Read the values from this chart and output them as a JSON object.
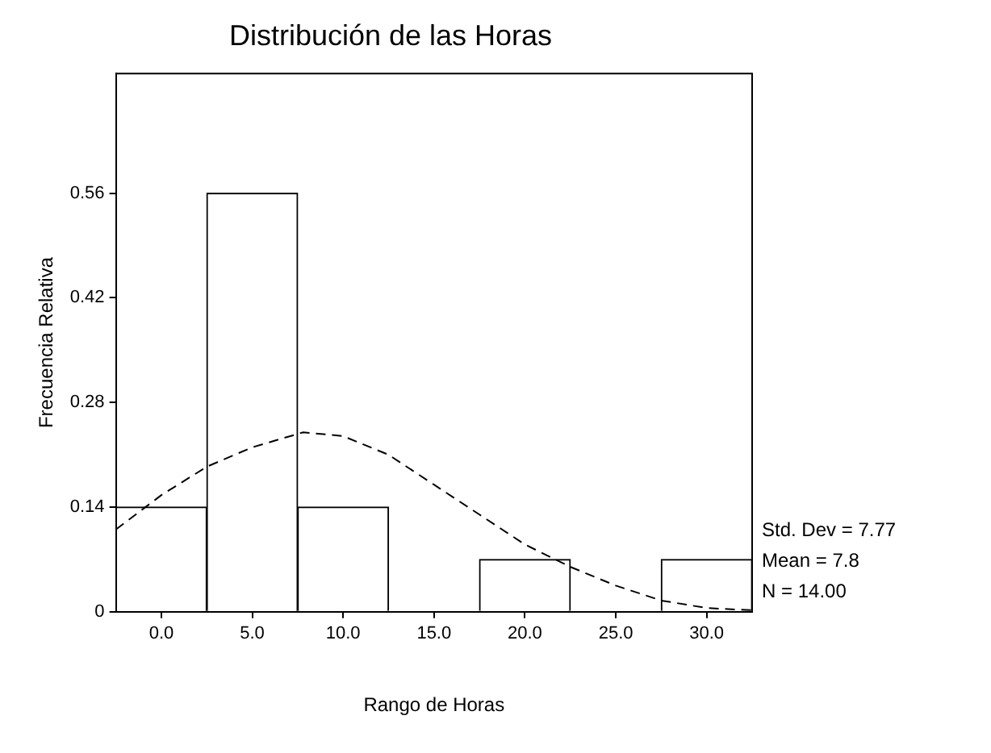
{
  "chart_data": {
    "type": "histogram",
    "title": "Distribución de las Horas",
    "xlabel": "Rango de Horas",
    "ylabel": "Frecuencia Relativa",
    "bins": [
      -2.5,
      2.5,
      7.5,
      12.5,
      17.5,
      22.5,
      27.5,
      32.5
    ],
    "values": [
      0.14,
      0.56,
      0.14,
      0,
      0.07,
      0,
      0.07
    ],
    "color": "#ffffff",
    "series": [
      {
        "type": "line",
        "color": "#000000",
        "line_style": "dashed",
        "marker": "none",
        "x": [
          -2.5,
          0,
          2.5,
          5,
          7.8,
          10,
          12.5,
          15,
          17.5,
          20,
          22.5,
          25,
          27.5,
          30,
          32.5
        ],
        "values": [
          0.11,
          0.156,
          0.194,
          0.22,
          0.24,
          0.235,
          0.21,
          0.17,
          0.13,
          0.09,
          0.06,
          0.035,
          0.015,
          0.005,
          0.002
        ]
      }
    ],
    "xlim": [
      -2.5,
      32.5
    ],
    "xticks": [
      {
        "value": 0,
        "label": "0.0"
      },
      {
        "value": 5,
        "label": "5.0"
      },
      {
        "value": 10,
        "label": "10.0"
      },
      {
        "value": 15,
        "label": "15.0"
      },
      {
        "value": 20,
        "label": "20.0"
      },
      {
        "value": 25,
        "label": "25.0"
      },
      {
        "value": 30,
        "label": "30.0"
      }
    ],
    "ylim": [
      0,
      0.72
    ],
    "yticks": [
      0,
      0.14,
      0.28,
      0.42,
      0.56
    ],
    "annotations": [
      "Std. Dev = 7.77",
      "Mean = 7.8",
      "N = 14.00"
    ],
    "grid": false,
    "legend": false
  }
}
